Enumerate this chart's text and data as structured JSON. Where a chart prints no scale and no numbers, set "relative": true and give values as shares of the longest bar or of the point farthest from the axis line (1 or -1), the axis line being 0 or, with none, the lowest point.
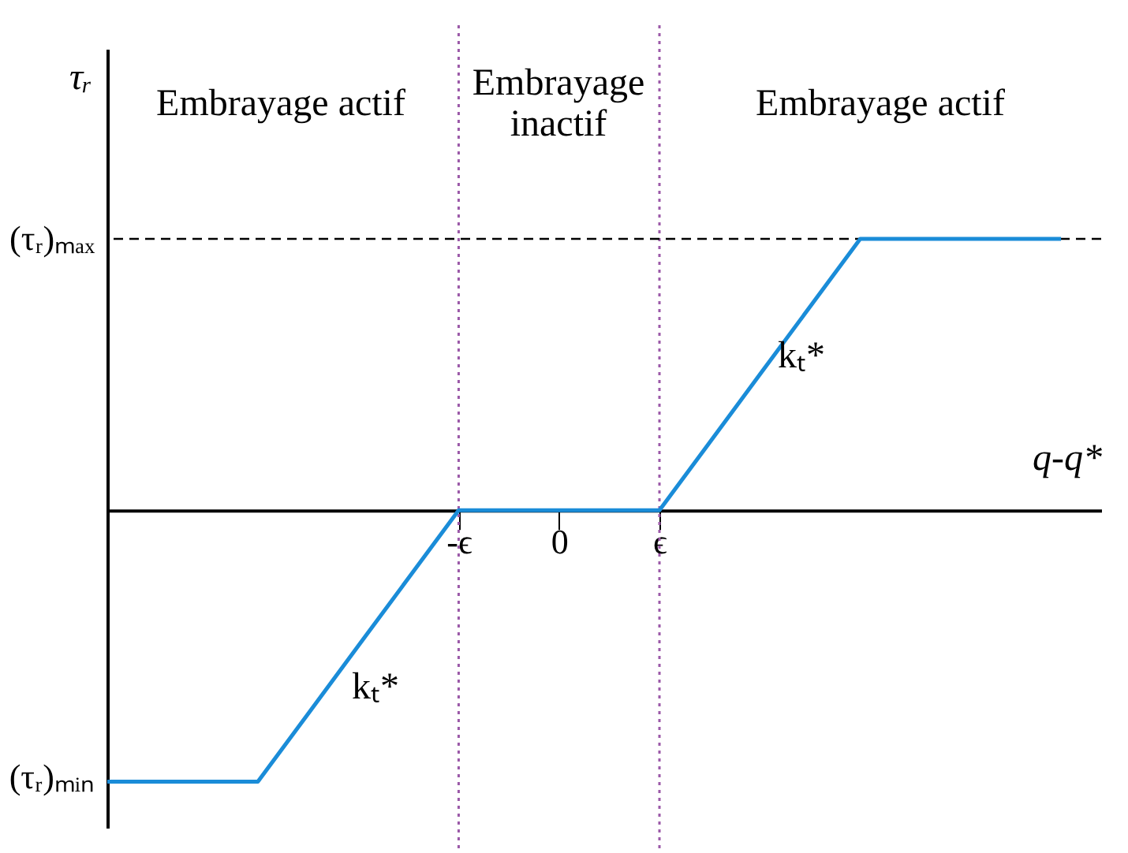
{
  "chart_data": {
    "type": "line",
    "xlabel": "q-q*",
    "ylabel": "τᵣ",
    "relative": true,
    "categories": [
      null,
      null,
      null,
      null,
      null,
      null,
      null,
      "-ϵ",
      null,
      "0",
      null,
      "ϵ",
      null,
      null,
      null,
      null,
      null,
      null,
      null,
      null
    ],
    "series": [
      {
        "color": "#1a8cd8",
        "values": [
          -1,
          -1,
          -1,
          -1,
          -0.75,
          -0.5,
          -0.25,
          0,
          0,
          0,
          0,
          0,
          0.25,
          0.5,
          0.75,
          1,
          1,
          1,
          1,
          1
        ]
      }
    ],
    "ref_lines": [
      {
        "axis": "y",
        "value": 1,
        "label": "(τᵣ)ₘₐₓ",
        "color": "#000000",
        "line_style": "dashed"
      },
      {
        "axis": "x",
        "value": "-ϵ",
        "color": "#9b59a8",
        "line_style": "dotted"
      },
      {
        "axis": "x",
        "value": "ϵ",
        "color": "#9b59a8",
        "line_style": "dotted"
      }
    ],
    "annotations": [
      "Embrayage actif",
      "Embrayage\ninactif",
      "Embrayage actif",
      "kₜ*",
      "kₜ*",
      "(τᵣ)ₘᵢₙ"
    ],
    "grid": false,
    "legend": false,
    "marker": "none",
    "line_style": "solid"
  }
}
